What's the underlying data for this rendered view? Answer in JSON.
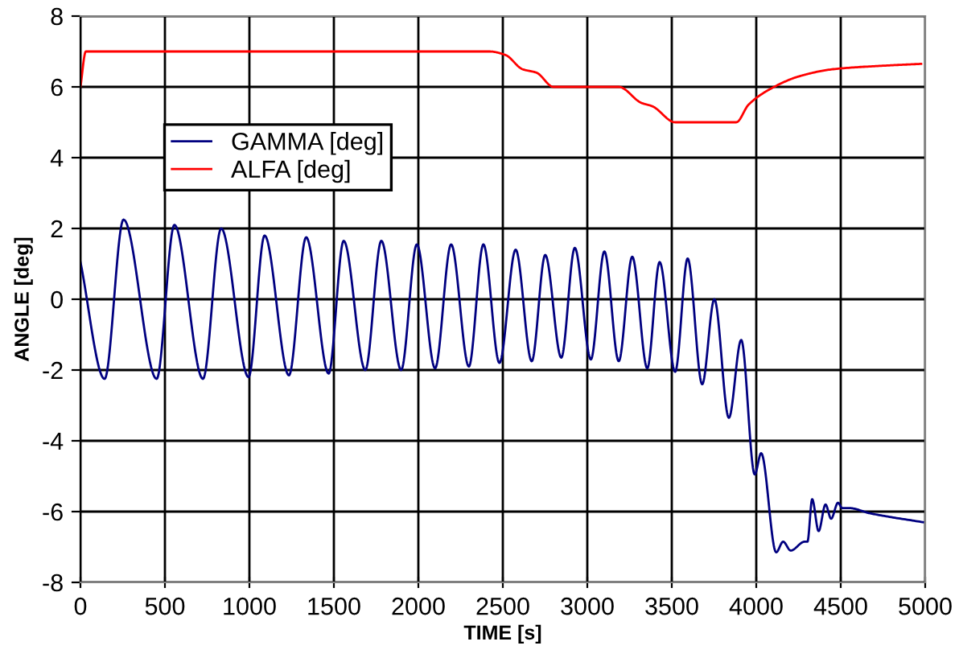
{
  "chart_data": {
    "type": "line",
    "xlabel": "TIME [s]",
    "ylabel": "ANGLE [deg]",
    "xlim": [
      0,
      5000
    ],
    "xticks": [
      0,
      500,
      1000,
      1500,
      2000,
      2500,
      3000,
      3500,
      4000,
      4500,
      5000
    ],
    "ylim": [
      -8,
      8
    ],
    "yticks": [
      -8,
      -6,
      -4,
      -2,
      0,
      2,
      4,
      6,
      8
    ],
    "grid": true,
    "legend": "top left",
    "marker": "none",
    "line_style": "solid",
    "series": [
      {
        "name": "GAMMA [deg]",
        "color": "#000080",
        "x": [
          0,
          143,
          255,
          451,
          556,
          725,
          833,
          995,
          1090,
          1234,
          1336,
          1469,
          1558,
          1686,
          1781,
          1898,
          1991,
          2099,
          2194,
          2299,
          2385,
          2480,
          2576,
          2671,
          2751,
          2846,
          2926,
          3021,
          3101,
          3186,
          3266,
          3355,
          3428,
          3520,
          3594,
          3680,
          3752,
          3838,
          3911,
          3991,
          4029,
          4118,
          4159,
          4204,
          4286,
          4303,
          4331,
          4369,
          4410,
          4443,
          4484,
          4509,
          4548,
          4675,
          4987
        ],
        "values": [
          1.05,
          -2.25,
          2.25,
          -2.25,
          2.1,
          -2.25,
          2.0,
          -2.2,
          1.8,
          -2.15,
          1.75,
          -2.1,
          1.65,
          -2.0,
          1.65,
          -2.0,
          1.55,
          -1.95,
          1.55,
          -1.9,
          1.55,
          -1.8,
          1.4,
          -1.75,
          1.25,
          -1.65,
          1.45,
          -1.7,
          1.35,
          -1.75,
          1.2,
          -1.95,
          1.05,
          -2.05,
          1.15,
          -2.4,
          0.0,
          -3.35,
          -1.15,
          -4.95,
          -4.35,
          -7.15,
          -6.85,
          -7.1,
          -6.85,
          -6.85,
          -5.65,
          -6.55,
          -5.8,
          -6.2,
          -5.75,
          -5.9,
          -5.9,
          -6.05,
          -6.3
        ]
      },
      {
        "name": "ALFA [deg]",
        "color": "#ff0000",
        "x": [
          0,
          32,
          2422,
          2516,
          2616,
          2700,
          2800,
          3186,
          3319,
          3386,
          3520,
          3881,
          3955,
          4106,
          4255,
          4455,
          4759,
          4976
        ],
        "values": [
          6.0,
          7.0,
          7.0,
          6.9,
          6.5,
          6.4,
          6.0,
          6.0,
          5.55,
          5.45,
          5.0,
          5.0,
          5.5,
          6.0,
          6.3,
          6.5,
          6.6,
          6.65
        ]
      }
    ]
  }
}
